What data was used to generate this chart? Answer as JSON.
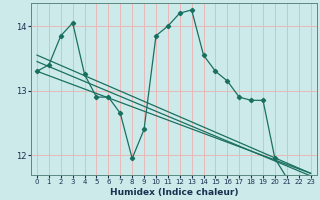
{
  "xlabel": "Humidex (Indice chaleur)",
  "bg_color": "#cdeaea",
  "grid_color": "#e8b8b8",
  "line_color": "#1a7060",
  "xlim": [
    -0.5,
    23.5
  ],
  "ylim": [
    11.7,
    14.35
  ],
  "yticks": [
    12,
    13,
    14
  ],
  "xticks": [
    0,
    1,
    2,
    3,
    4,
    5,
    6,
    7,
    8,
    9,
    10,
    11,
    12,
    13,
    14,
    15,
    16,
    17,
    18,
    19,
    20,
    21,
    22,
    23
  ],
  "series1_x": [
    0,
    1,
    2,
    3,
    4,
    5,
    6,
    7,
    8,
    9,
    10,
    11,
    12,
    13,
    14,
    15,
    16,
    17,
    18,
    19,
    20,
    21,
    22,
    23
  ],
  "series1_y": [
    13.3,
    13.4,
    13.85,
    14.05,
    13.25,
    12.9,
    12.9,
    12.65,
    11.95,
    12.4,
    13.85,
    14.0,
    14.2,
    14.25,
    13.55,
    13.3,
    13.15,
    12.9,
    12.85,
    12.85,
    11.95,
    11.65,
    11.65,
    11.65
  ],
  "trend1_x": [
    0,
    23
  ],
  "trend1_y": [
    13.3,
    11.72
  ],
  "trend2_x": [
    0,
    23
  ],
  "trend2_y": [
    13.55,
    11.72
  ],
  "trend3_x": [
    0,
    23
  ],
  "trend3_y": [
    13.45,
    11.68
  ]
}
